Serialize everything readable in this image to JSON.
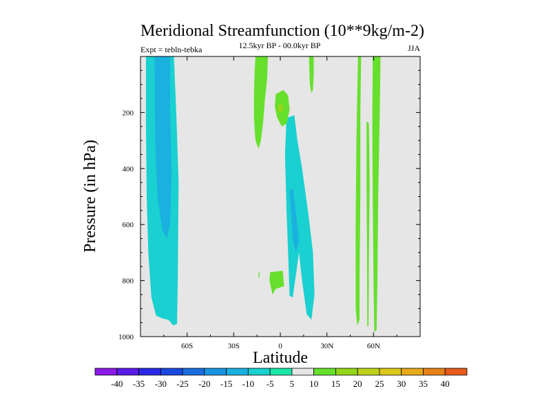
{
  "chart_data": {
    "type": "contour",
    "title": "Meridional Streamfunction (10**9kg/m-2)",
    "subtitle_left": "Expt = tebln-tebka",
    "subtitle_center": "12.5kyr BP - 00.0kyr BP",
    "subtitle_right": "JJA",
    "xlabel": "Latitude",
    "ylabel": "Pressure (in hPa)",
    "xlim": [
      -90,
      90
    ],
    "ylim": [
      1000,
      0
    ],
    "x_ticks": [
      {
        "value": -60,
        "label": "60S"
      },
      {
        "value": -30,
        "label": "30S"
      },
      {
        "value": 0,
        "label": "0"
      },
      {
        "value": 30,
        "label": "30N"
      },
      {
        "value": 60,
        "label": "60N"
      }
    ],
    "y_ticks": [
      {
        "value": 200,
        "label": "200"
      },
      {
        "value": 400,
        "label": "400"
      },
      {
        "value": 600,
        "label": "600"
      },
      {
        "value": 800,
        "label": "800"
      },
      {
        "value": 1000,
        "label": "1000"
      }
    ],
    "background_color": "#e6e6e6",
    "contour_levels": [
      -40,
      -35,
      -30,
      -25,
      -20,
      -15,
      -10,
      -5,
      5,
      10,
      15,
      20,
      25,
      30,
      35,
      40
    ],
    "colorbar_colors": [
      "#8a1ae6",
      "#5a1ae6",
      "#2a28e6",
      "#1a48e0",
      "#1a6ee0",
      "#1a94e0",
      "#1ab0e0",
      "#1ad0d0",
      "#1ae6a8",
      "#e6e6e6",
      "#66e02c",
      "#94d61a",
      "#bed21a",
      "#dcc81a",
      "#e6aa1a",
      "#e6821a",
      "#e65a1a"
    ],
    "regions": [
      {
        "name": "band-70S-10",
        "level": -10,
        "color": "#1ad0d0",
        "points": [
          [
            -86.5,
            0
          ],
          [
            -68.5,
            0
          ],
          [
            -67,
            200
          ],
          [
            -65.5,
            450
          ],
          [
            -66,
            800
          ],
          [
            -66.5,
            955
          ],
          [
            -69,
            960
          ],
          [
            -72,
            940
          ],
          [
            -76,
            935
          ],
          [
            -80,
            925
          ],
          [
            -83,
            860
          ],
          [
            -85,
            700
          ],
          [
            -86,
            500
          ],
          [
            -86.5,
            250
          ]
        ]
      },
      {
        "name": "band-70S-15",
        "level": -15,
        "color": "#1ab0e0",
        "points": [
          [
            -81,
            0
          ],
          [
            -71,
            0
          ],
          [
            -71,
            200
          ],
          [
            -70,
            420
          ],
          [
            -71,
            600
          ],
          [
            -73,
            650
          ],
          [
            -76,
            620
          ],
          [
            -79,
            500
          ],
          [
            -80.5,
            300
          ]
        ]
      },
      {
        "name": "cell-15N-10",
        "level": -10,
        "color": "#1ad0d0",
        "points": [
          [
            4,
            220
          ],
          [
            9,
            210
          ],
          [
            11,
            300
          ],
          [
            14,
            400
          ],
          [
            18,
            560
          ],
          [
            21,
            700
          ],
          [
            22,
            850
          ],
          [
            20,
            940
          ],
          [
            17,
            920
          ],
          [
            14,
            800
          ],
          [
            12,
            700
          ],
          [
            10,
            780
          ],
          [
            8,
            860
          ],
          [
            6,
            855
          ],
          [
            5,
            700
          ],
          [
            4,
            550
          ],
          [
            3,
            350
          ]
        ]
      },
      {
        "name": "cell-15N-15",
        "level": -15,
        "color": "#1ab0e0",
        "points": [
          [
            6,
            480
          ],
          [
            8,
            470
          ],
          [
            10,
            560
          ],
          [
            12,
            660
          ],
          [
            10,
            700
          ],
          [
            8,
            650
          ],
          [
            7,
            560
          ]
        ]
      },
      {
        "name": "patch-15S-5",
        "level": 5,
        "color": "#66e02c",
        "points": [
          [
            -16,
            0
          ],
          [
            -8,
            0
          ],
          [
            -8.5,
            80
          ],
          [
            -10,
            160
          ],
          [
            -11,
            230
          ],
          [
            -12.5,
            300
          ],
          [
            -14,
            330
          ],
          [
            -16,
            300
          ],
          [
            -17,
            220
          ],
          [
            -17,
            140
          ],
          [
            -16.5,
            50
          ]
        ]
      },
      {
        "name": "patch-0-5",
        "level": 5,
        "color": "#66e02c",
        "points": [
          [
            -3,
            135
          ],
          [
            2,
            120
          ],
          [
            5,
            140
          ],
          [
            6,
            190
          ],
          [
            4,
            240
          ],
          [
            1,
            250
          ],
          [
            -2,
            220
          ],
          [
            -3.5,
            180
          ]
        ]
      },
      {
        "name": "patch-0-10",
        "level": 10,
        "color": "#94d61a",
        "points": [
          [
            -1.5,
            175
          ],
          [
            1,
            165
          ],
          [
            2,
            185
          ],
          [
            0.5,
            200
          ],
          [
            -1.5,
            195
          ]
        ]
      },
      {
        "name": "patch-3S-850",
        "level": 5,
        "color": "#66e02c",
        "points": [
          [
            -6.5,
            770
          ],
          [
            1.5,
            765
          ],
          [
            2.5,
            820
          ],
          [
            -3,
            830
          ],
          [
            -5,
            850
          ],
          [
            -7,
            800
          ]
        ]
      },
      {
        "name": "dot-13S-775",
        "level": 5,
        "color": "#66e02c",
        "points": [
          [
            -14,
            770
          ],
          [
            -13.4,
            770
          ],
          [
            -13.4,
            790
          ],
          [
            -14,
            790
          ]
        ]
      },
      {
        "name": "patch-18N-5",
        "level": 5,
        "color": "#66e02c",
        "points": [
          [
            18.5,
            0
          ],
          [
            21.5,
            0
          ],
          [
            21.5,
            60
          ],
          [
            21,
            120
          ],
          [
            20,
            130
          ],
          [
            19,
            100
          ],
          [
            18.7,
            50
          ]
        ]
      },
      {
        "name": "band-50N-5",
        "level": 5,
        "color": "#66e02c",
        "points": [
          [
            50,
            0
          ],
          [
            52,
            0
          ],
          [
            51.5,
            200
          ],
          [
            51.5,
            500
          ],
          [
            51,
            800
          ],
          [
            51,
            940
          ],
          [
            49.5,
            960
          ],
          [
            48.5,
            900
          ],
          [
            48.5,
            600
          ],
          [
            49,
            300
          ]
        ]
      },
      {
        "name": "band-57N-5",
        "level": 5,
        "color": "#66e02c",
        "points": [
          [
            55.5,
            230
          ],
          [
            57,
            240
          ],
          [
            57.5,
            450
          ],
          [
            57,
            700
          ],
          [
            56.8,
            960
          ],
          [
            56,
            965
          ],
          [
            55.8,
            700
          ],
          [
            55.5,
            450
          ]
        ]
      },
      {
        "name": "band-62N-5",
        "level": 5,
        "color": "#66e02c",
        "points": [
          [
            59.5,
            0
          ],
          [
            64.5,
            0
          ],
          [
            64,
            200
          ],
          [
            63,
            500
          ],
          [
            62.5,
            800
          ],
          [
            62,
            975
          ],
          [
            60.5,
            985
          ],
          [
            60,
            800
          ],
          [
            59.5,
            500
          ],
          [
            59.2,
            250
          ]
        ]
      }
    ]
  }
}
